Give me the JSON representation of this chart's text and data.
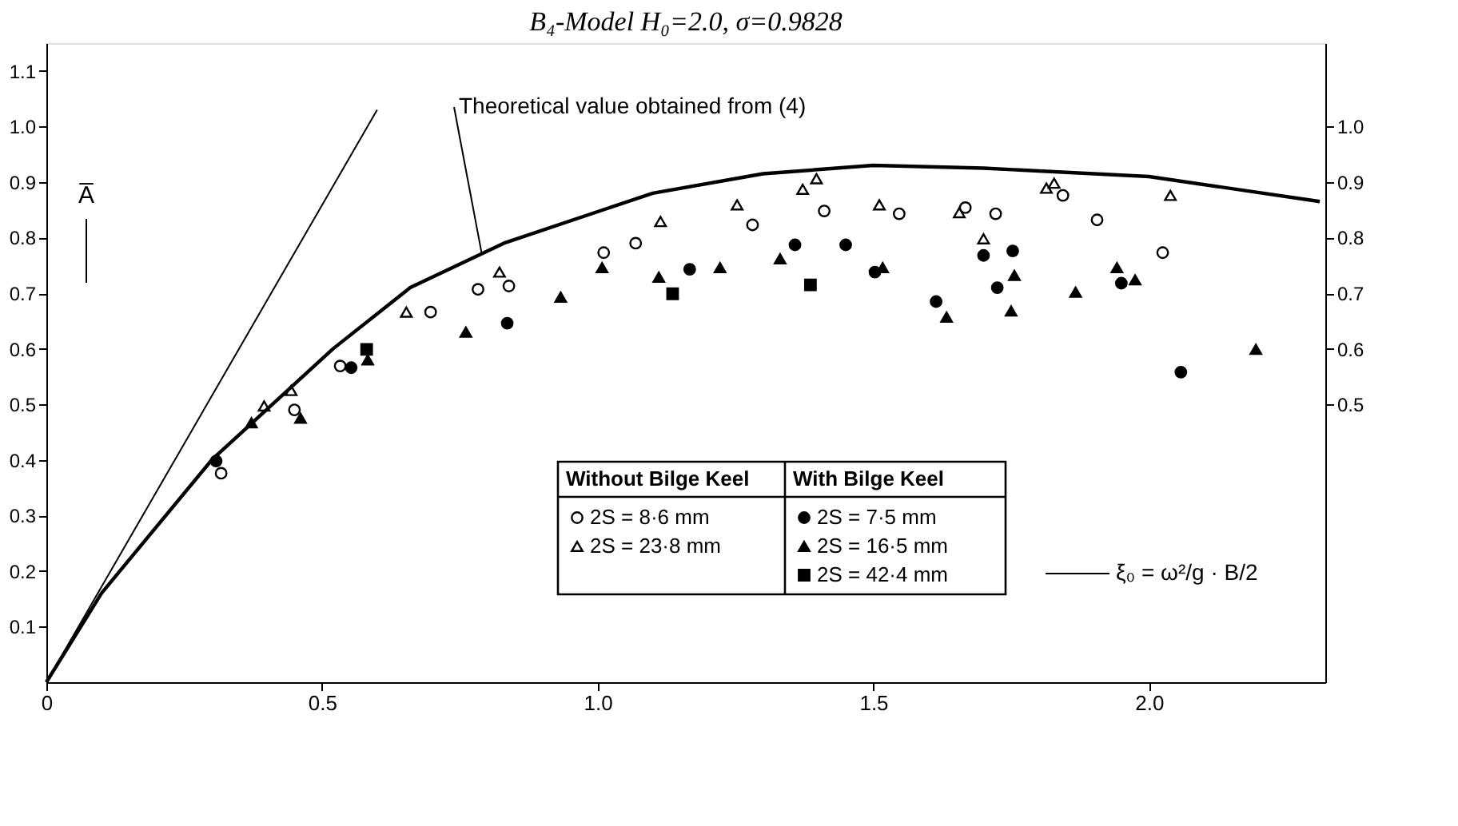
{
  "chart_data": {
    "type": "scatter",
    "title": "B₄-Model  H₀=2.0,  σ=0.9828",
    "xlabel": "ξ₀ = ω²/g · B/2",
    "ylabel": "A̅",
    "xlim": [
      0,
      2.32
    ],
    "ylim": [
      0,
      1.15
    ],
    "xticks": [
      0,
      0.5,
      {
        "value": 1,
        "label": "1.0"
      },
      1.5,
      {
        "value": 2,
        "label": "2.0"
      }
    ],
    "yticks": [
      0.1,
      0.2,
      0.3,
      0.4,
      0.5,
      0.6,
      0.7,
      0.8,
      0.9,
      {
        "value": 1,
        "label": "1.0"
      },
      1.1
    ],
    "y2lim": [
      0,
      1.15
    ],
    "y2ticks": [
      0.5,
      0.6,
      0.7,
      0.8,
      0.9,
      {
        "value": 1,
        "label": "1.0"
      }
    ],
    "grid": false,
    "legend": "bottom",
    "annotations": [
      {
        "text": "Theoretical value obtained from (4)",
        "x": 0.79,
        "y": 0.77
      },
      "Without Bilge Keel",
      "With Bilge Keel"
    ],
    "series": [
      {
        "name": "2S = 8·6 mm",
        "marker": "circle",
        "color": "#ffffff",
        "x": [
          0.317,
          0.45,
          0.533,
          0.697,
          0.783,
          0.839,
          1.011,
          1.069,
          1.281,
          1.411,
          1.547,
          1.667,
          1.722,
          1.844,
          1.906,
          2.025
        ],
        "values": [
          0.376,
          0.49,
          0.569,
          0.666,
          0.707,
          0.713,
          0.773,
          0.79,
          0.823,
          0.848,
          0.843,
          0.854,
          0.843,
          0.876,
          0.832,
          0.773
        ]
      },
      {
        "name": "2S = 23·8 mm",
        "marker": "triangle",
        "color": "#ffffff",
        "x": [
          0.395,
          0.444,
          0.653,
          0.822,
          1.114,
          1.253,
          1.372,
          1.397,
          1.511,
          1.656,
          1.7,
          1.814,
          1.828,
          2.039
        ],
        "values": [
          0.497,
          0.525,
          0.666,
          0.738,
          0.829,
          0.859,
          0.887,
          0.906,
          0.859,
          0.845,
          0.798,
          0.889,
          0.898,
          0.876
        ]
      },
      {
        "name": "2S = 7·5 mm",
        "marker": "circle",
        "color": "#000000",
        "x": [
          0.308,
          0.553,
          0.836,
          1.167,
          1.358,
          1.45,
          1.503,
          1.614,
          1.7,
          1.725,
          1.753,
          1.95,
          2.058
        ],
        "values": [
          0.398,
          0.566,
          0.646,
          0.743,
          0.787,
          0.787,
          0.738,
          0.685,
          0.768,
          0.71,
          0.776,
          0.718,
          0.558
        ]
      },
      {
        "name": "2S = 16·5 mm",
        "marker": "triangle",
        "color": "#000000",
        "x": [
          0.372,
          0.461,
          0.583,
          0.761,
          0.933,
          1.008,
          1.111,
          1.222,
          1.331,
          1.517,
          1.633,
          1.75,
          1.756,
          1.867,
          1.942,
          1.975,
          2.194
        ],
        "values": [
          0.467,
          0.475,
          0.58,
          0.63,
          0.693,
          0.746,
          0.729,
          0.746,
          0.762,
          0.746,
          0.657,
          0.668,
          0.732,
          0.702,
          0.746,
          0.724,
          0.599
        ]
      },
      {
        "name": "2S = 42·4 mm",
        "marker": "square",
        "color": "#000000",
        "x": [
          0.581,
          1.136,
          1.386
        ],
        "values": [
          0.599,
          0.699,
          0.715
        ]
      },
      {
        "type": "line",
        "line_style": "solid",
        "color": "#000000",
        "x": [
          0,
          0.1,
          0.3,
          0.52,
          0.66,
          0.83,
          1.1,
          1.3,
          1.5,
          1.7,
          2.0,
          2.31
        ],
        "values": [
          0,
          0.16,
          0.4,
          0.6,
          0.71,
          0.79,
          0.88,
          0.915,
          0.93,
          0.925,
          0.91,
          0.865
        ]
      },
      {
        "type": "line",
        "line_style": "solid",
        "color": "#000000",
        "x": [
          0,
          0.6
        ],
        "values": [
          0,
          1.03
        ]
      }
    ]
  }
}
